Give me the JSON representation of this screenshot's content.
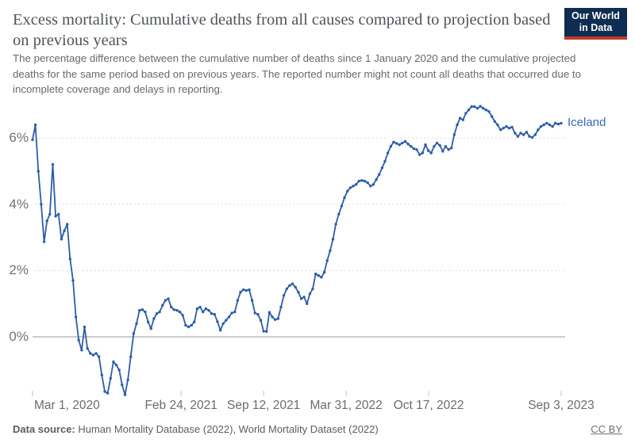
{
  "header": {
    "title": "Excess mortality: Cumulative deaths from all causes compared to projection based on previous years",
    "subtitle": "The percentage difference between the cumulative number of deaths since 1 January 2020 and the cumulative projected deaths for the same period based on previous years. The reported number might not count all deaths that occurred due to incomplete coverage and delays in reporting.",
    "logo": {
      "line1": "Our World",
      "line2": "in Data",
      "bg_color": "#0f2d52",
      "stripe_color": "#c0392b"
    }
  },
  "chart_data": {
    "type": "line",
    "title": "Excess mortality: Cumulative deaths from all causes compared to projection based on previous years",
    "x_cadence": "weekly",
    "x_start": "Mar 1, 2020",
    "x_end": "Sep 3, 2023",
    "xticks": [
      {
        "label": "Mar 1, 2020",
        "index": 0
      },
      {
        "label": "Feb 24, 2021",
        "index": 51.43
      },
      {
        "label": "Sep 12, 2021",
        "index": 80
      },
      {
        "label": "Mar 31, 2022",
        "index": 108.57
      },
      {
        "label": "Oct 17, 2022",
        "index": 137.14
      },
      {
        "label": "Sep 3, 2023",
        "index": 183
      }
    ],
    "yticks": [
      {
        "label": "0%",
        "value": 0
      },
      {
        "label": "2%",
        "value": 2
      },
      {
        "label": "4%",
        "value": 4
      },
      {
        "label": "6%",
        "value": 6
      }
    ],
    "ylim": [
      -2.1,
      7.1
    ],
    "grid": "dashed horizontal, solid zero line",
    "legend": "end-of-line label",
    "grid_color": "#dddddd",
    "zero_line_color": "#9b9b9b",
    "series": [
      {
        "name": "Iceland",
        "color": "#2d5da8",
        "unit": "%",
        "values": [
          5.95,
          6.4,
          5.0,
          4.0,
          2.87,
          3.5,
          3.7,
          5.2,
          3.64,
          3.7,
          2.95,
          3.2,
          3.4,
          2.35,
          1.7,
          0.6,
          -0.1,
          -0.4,
          0.3,
          -0.35,
          -0.5,
          -0.55,
          -0.5,
          -0.6,
          -1.15,
          -1.65,
          -1.7,
          -1.25,
          -0.75,
          -0.85,
          -1.0,
          -1.45,
          -1.75,
          -1.3,
          -0.6,
          0.1,
          0.4,
          0.8,
          0.82,
          0.75,
          0.45,
          0.25,
          0.55,
          0.7,
          0.75,
          0.95,
          1.1,
          1.15,
          0.9,
          0.82,
          0.8,
          0.75,
          0.65,
          0.35,
          0.3,
          0.35,
          0.45,
          0.85,
          0.9,
          0.75,
          0.85,
          0.8,
          0.7,
          0.68,
          0.46,
          0.2,
          0.4,
          0.5,
          0.6,
          0.72,
          0.75,
          1.1,
          1.35,
          1.42,
          1.4,
          1.42,
          1.1,
          0.72,
          0.68,
          0.5,
          0.17,
          0.16,
          0.74,
          0.6,
          0.52,
          0.55,
          0.9,
          1.25,
          1.45,
          1.55,
          1.6,
          1.5,
          1.35,
          1.15,
          1.2,
          1.0,
          1.3,
          1.45,
          1.9,
          1.85,
          1.8,
          1.95,
          2.3,
          2.6,
          2.95,
          3.4,
          3.7,
          3.95,
          4.2,
          4.4,
          4.5,
          4.55,
          4.6,
          4.7,
          4.72,
          4.7,
          4.65,
          4.55,
          4.6,
          4.75,
          4.9,
          5.1,
          5.3,
          5.55,
          5.75,
          5.88,
          5.84,
          5.8,
          5.85,
          5.9,
          5.82,
          5.75,
          5.68,
          5.65,
          5.5,
          5.55,
          5.8,
          5.62,
          5.55,
          5.75,
          5.85,
          5.78,
          5.6,
          5.75,
          5.65,
          5.7,
          6.1,
          6.4,
          6.6,
          6.55,
          6.75,
          6.85,
          6.95,
          6.95,
          6.9,
          6.96,
          6.9,
          6.85,
          6.8,
          6.65,
          6.5,
          6.4,
          6.25,
          6.3,
          6.35,
          6.3,
          6.33,
          6.15,
          6.05,
          6.15,
          6.1,
          6.18,
          6.05,
          6.02,
          6.1,
          6.25,
          6.35,
          6.4,
          6.45,
          6.4,
          6.35,
          6.45,
          6.42,
          6.45
        ]
      }
    ]
  },
  "footer": {
    "data_source_label": "Data source:",
    "data_source_text": " Human Mortality Database (2022), World Mortality Dataset (2022)",
    "license": "CC BY"
  }
}
